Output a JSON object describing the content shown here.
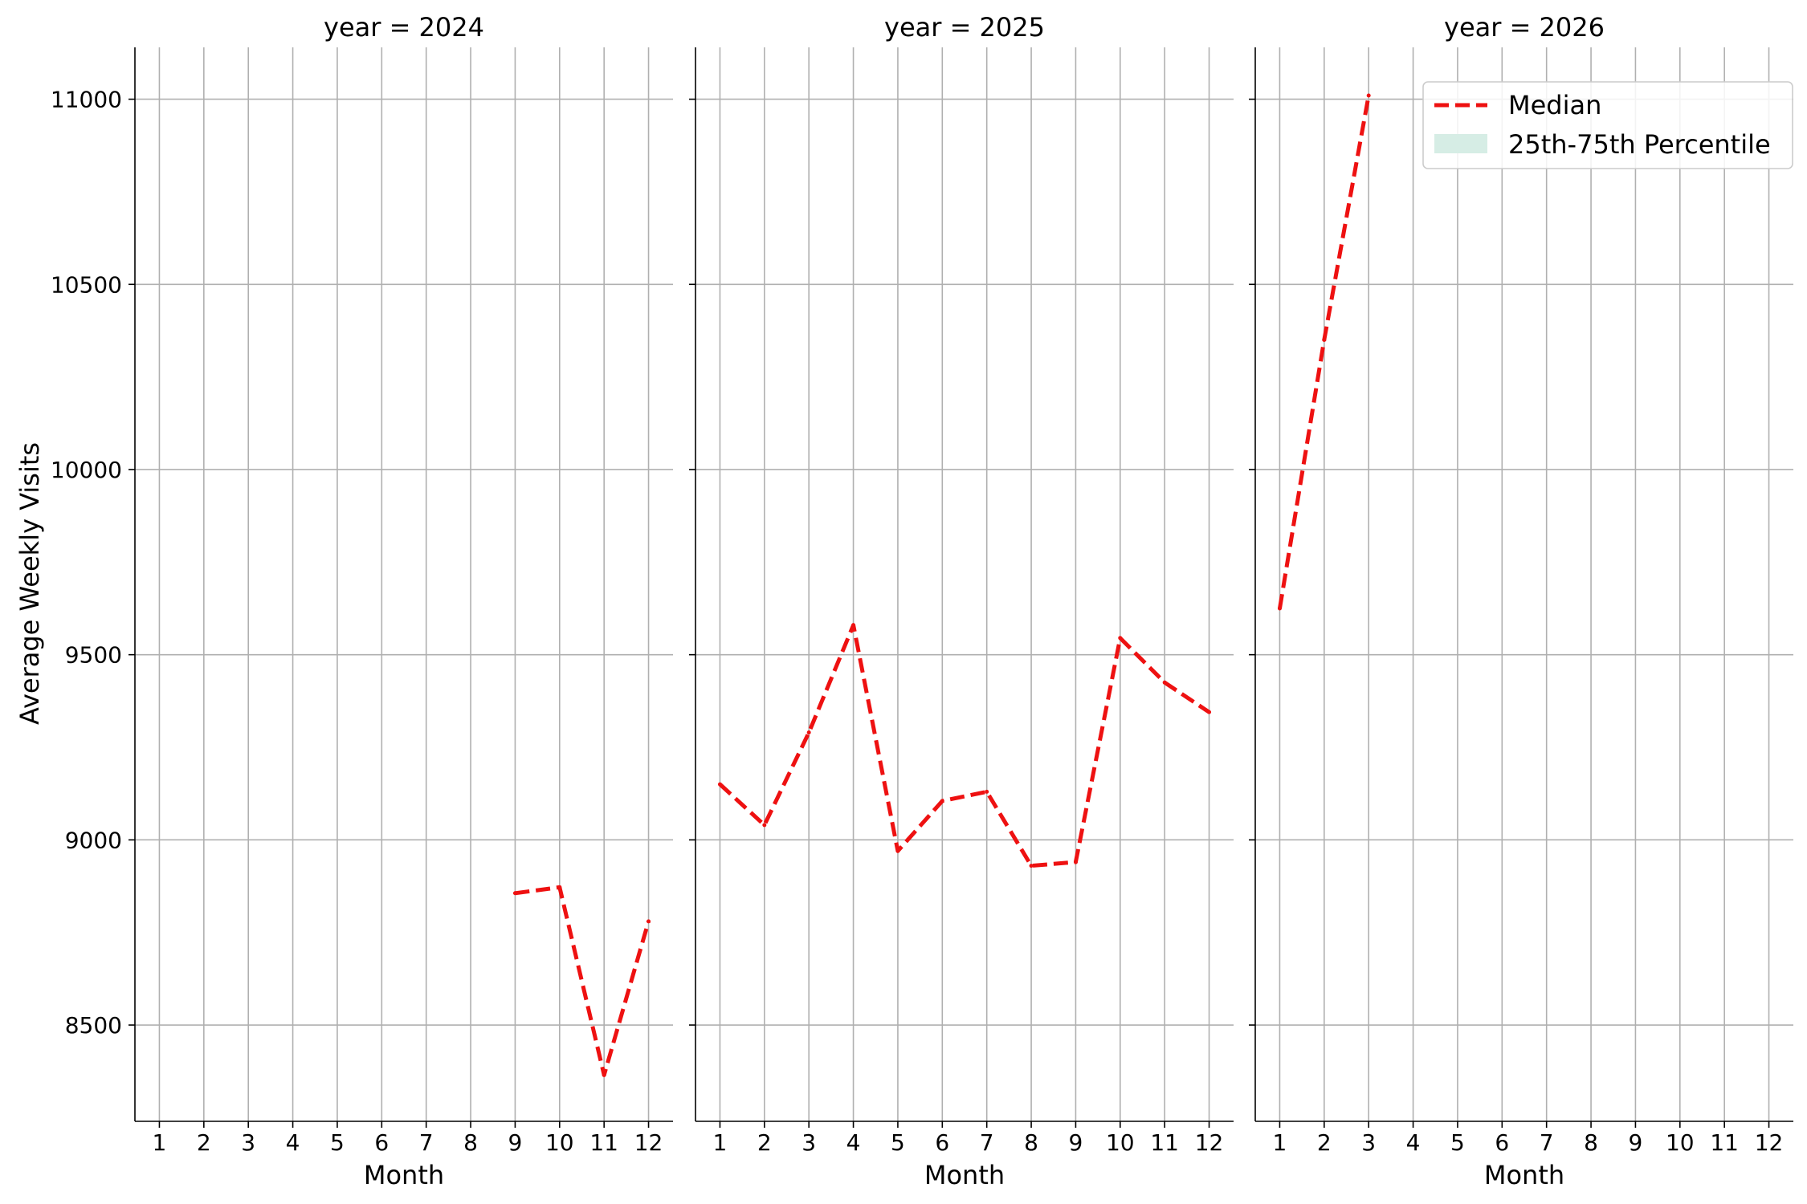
{
  "chart_data": [
    {
      "type": "line",
      "title": "year = 2024",
      "xlabel": "Month",
      "ylabel": "Average Weekly Visits",
      "x_ticks": [
        "1",
        "2",
        "3",
        "4",
        "5",
        "6",
        "7",
        "8",
        "9",
        "10",
        "11",
        "12"
      ],
      "y_ticks": [
        "8500",
        "9000",
        "9500",
        "10000",
        "10500",
        "11000"
      ],
      "xlim": [
        0.45,
        12.55
      ],
      "ylim": [
        8240,
        11140
      ],
      "grid": true,
      "series": [
        {
          "name": "Median",
          "x": [
            9,
            10,
            11,
            12
          ],
          "values": [
            8856,
            8872,
            8365,
            8780
          ]
        }
      ]
    },
    {
      "type": "line",
      "title": "year = 2025",
      "xlabel": "Month",
      "ylabel": "",
      "x_ticks": [
        "1",
        "2",
        "3",
        "4",
        "5",
        "6",
        "7",
        "8",
        "9",
        "10",
        "11",
        "12"
      ],
      "y_ticks": [
        "8500",
        "9000",
        "9500",
        "10000",
        "10500",
        "11000"
      ],
      "xlim": [
        0.45,
        12.55
      ],
      "ylim": [
        8240,
        11140
      ],
      "grid": true,
      "series": [
        {
          "name": "Median",
          "x": [
            1,
            2,
            3,
            4,
            5,
            6,
            7,
            8,
            9,
            10,
            11,
            12
          ],
          "values": [
            9150,
            9040,
            9290,
            9580,
            8970,
            9105,
            9130,
            8930,
            8940,
            9545,
            9425,
            9345
          ]
        }
      ]
    },
    {
      "type": "line",
      "title": "year = 2026",
      "xlabel": "Month",
      "ylabel": "",
      "x_ticks": [
        "1",
        "2",
        "3",
        "4",
        "5",
        "6",
        "7",
        "8",
        "9",
        "10",
        "11",
        "12"
      ],
      "y_ticks": [
        "8500",
        "9000",
        "9500",
        "10000",
        "10500",
        "11000"
      ],
      "xlim": [
        0.45,
        12.55
      ],
      "ylim": [
        8240,
        11140
      ],
      "grid": true,
      "series": [
        {
          "name": "Median",
          "x": [
            1,
            2,
            3
          ],
          "values": [
            9625,
            10350,
            11010
          ]
        }
      ]
    }
  ],
  "legend": {
    "placement": "top-right",
    "entries": [
      {
        "label": "Median",
        "color": "#ee1111",
        "style": "dashed-line"
      },
      {
        "label": "25th-75th Percentile",
        "color": "#d6ede5",
        "style": "filled-patch"
      }
    ]
  },
  "colors": {
    "median": "#ee1111",
    "iqr_band": "#d6ede5",
    "grid": "#b0b0b0",
    "axis": "#000000"
  }
}
